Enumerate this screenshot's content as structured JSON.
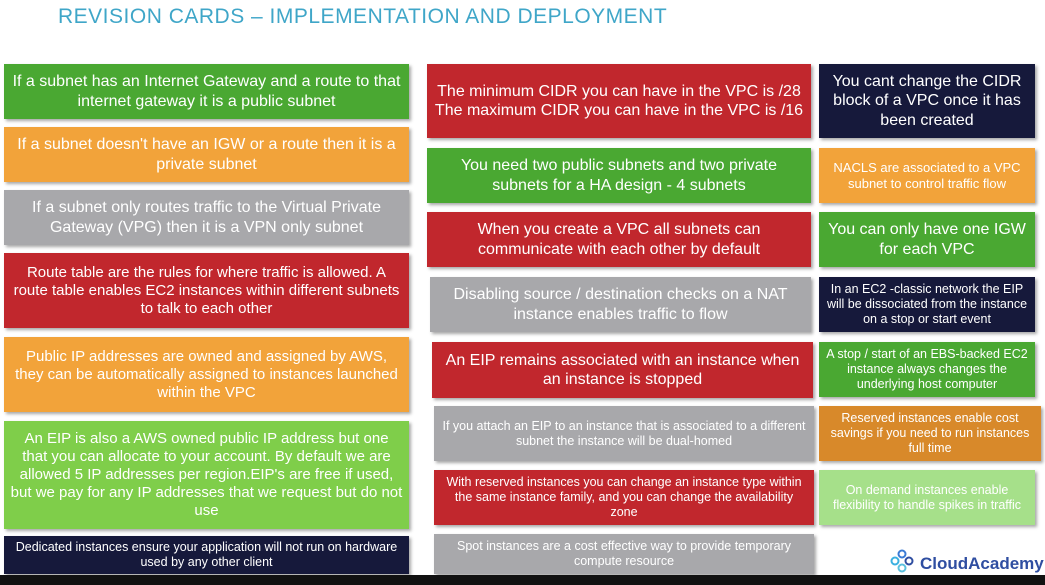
{
  "header": {
    "title": "REVISION CARDS – IMPLEMENTATION AND DEPLOYMENT"
  },
  "left_column": [
    {
      "text": "If a subnet has an Internet Gateway and a route to that internet gateway it is a public subnet",
      "color": "#4aa832"
    },
    {
      "text": "If a subnet doesn't have an IGW or a route then it is a private subnet",
      "color": "#f2a33a"
    },
    {
      "text": "If a subnet only routes traffic to the Virtual Private Gateway (VPG) then it is a VPN only subnet",
      "color": "#a8a8ab"
    },
    {
      "text": "Route table are the rules for where traffic is allowed. A route table enables EC2 instances within different subnets to talk to each other",
      "color": "#c1272d"
    },
    {
      "text": "Public IP addresses are owned and assigned by AWS, they can be automatically assigned to instances launched within the VPC",
      "color": "#f2a33a"
    },
    {
      "text": "An EIP is also a AWS owned public IP address but one that you can allocate to your account. By default we are allowed 5 IP addresses per region.EIP's are free if used, but we pay for any IP addresses that we request but do not use",
      "color": "#7fce4a"
    },
    {
      "text": "Dedicated instances ensure your application will not run on hardware used by any other client",
      "color": "#16193b"
    }
  ],
  "middle_column": [
    {
      "text": "The minimum CIDR you can have in the VPC is /28 The maximum CIDR you can have in the VPC is /16",
      "color": "#c1272d"
    },
    {
      "text": "You need two public subnets and two private subnets for a HA design - 4 subnets",
      "color": "#4aa832"
    },
    {
      "text": "When you create a VPC all subnets can communicate with each other by default",
      "color": "#c1272d"
    },
    {
      "text": "Disabling source / destination checks on a NAT instance enables traffic to flow",
      "color": "#a8a8ab"
    },
    {
      "text": "An EIP remains associated with an instance when an instance is stopped",
      "color": "#c1272d"
    },
    {
      "text": "If you attach an EIP to an instance that is associated to a different subnet the instance will be dual-homed",
      "color": "#a8a8ab"
    },
    {
      "text": "With reserved instances you can change an instance type within the same instance family, and you can change the availability zone",
      "color": "#c1272d"
    },
    {
      "text": "Spot instances are a cost effective way to provide temporary compute resource",
      "color": "#a8a8ab"
    }
  ],
  "right_column": [
    {
      "text": "You cant change the CIDR block of a VPC once it has been created",
      "color": "#16193b"
    },
    {
      "text": "NACLS are associated to a VPC subnet to control traffic flow",
      "color": "#f2a33a"
    },
    {
      "text": "You can only have one IGW for each VPC",
      "color": "#4aa832"
    },
    {
      "text": "In an EC2 -classic network the EIP will be dissociated from the instance on a stop or start event",
      "color": "#16193b"
    },
    {
      "text": "A stop / start of an EBS-backed EC2 instance always changes the underlying host computer",
      "color": "#4aa832"
    },
    {
      "text": "Reserved instances enable cost savings if you need to run instances full time",
      "color": "#d8892a"
    },
    {
      "text": "On demand instances enable flexibility to handle spikes in traffic",
      "color": "#a6e08a"
    }
  ],
  "branding": {
    "logo_text": "CloudAcademy",
    "logo_icon": "cloudacademy-logo-icon",
    "accent": "#2f4ea1"
  }
}
